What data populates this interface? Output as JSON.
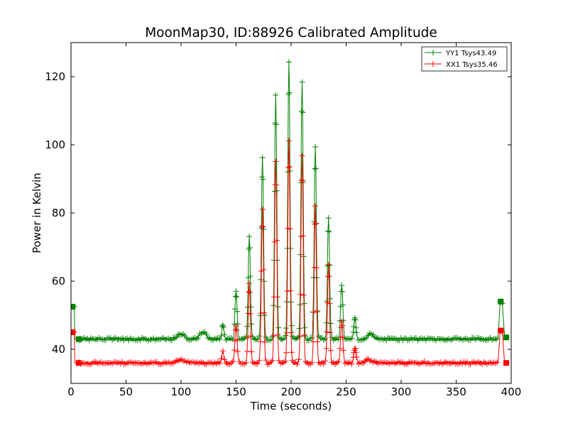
{
  "chart_data": {
    "type": "line",
    "title": "MoonMap30, ID:88926 Calibrated Amplitude",
    "xlabel": "Time (seconds)",
    "ylabel": "Power in Kelvin",
    "xlim": [
      0,
      400
    ],
    "ylim": [
      30,
      130
    ],
    "xticks": [
      0,
      50,
      100,
      150,
      200,
      250,
      300,
      350,
      400
    ],
    "yticks": [
      40,
      60,
      80,
      100,
      120
    ],
    "grid": false,
    "legend_position": "top-right",
    "series": [
      {
        "name": "YY1 Tsys43.49",
        "color": "#008000",
        "marker": "+",
        "baseline": 43,
        "calibration_start": {
          "x": [
            0,
            3,
            3.5,
            6
          ],
          "y": [
            52.5,
            52.5,
            43,
            43
          ]
        },
        "calibration_end": {
          "x": [
            388,
            390,
            392,
            394,
            396
          ],
          "y": [
            43,
            54,
            53.5,
            43.5,
            43.5
          ]
        },
        "bumps": [
          {
            "x": 100,
            "y": 44.5
          },
          {
            "x": 120,
            "y": 45
          },
          {
            "x": 138,
            "y": 47
          },
          {
            "x": 150,
            "y": 57
          },
          {
            "x": 162,
            "y": 73
          },
          {
            "x": 174,
            "y": 96.5
          },
          {
            "x": 186,
            "y": 114.5
          },
          {
            "x": 198,
            "y": 124.5
          },
          {
            "x": 210,
            "y": 118.5
          },
          {
            "x": 222,
            "y": 99.5
          },
          {
            "x": 234,
            "y": 78.5
          },
          {
            "x": 246,
            "y": 59
          },
          {
            "x": 258,
            "y": 49
          },
          {
            "x": 272,
            "y": 44.5
          }
        ]
      },
      {
        "name": "XX1 Tsys35.46",
        "color": "#ff0000",
        "marker": "+",
        "baseline": 36,
        "calibration_start": {
          "x": [
            0,
            3,
            3.5,
            6
          ],
          "y": [
            45,
            45,
            36,
            36
          ]
        },
        "calibration_end": {
          "x": [
            388,
            390,
            392,
            394,
            396
          ],
          "y": [
            36,
            45.5,
            45,
            36,
            36
          ]
        },
        "bumps": [
          {
            "x": 100,
            "y": 37
          },
          {
            "x": 138,
            "y": 39.5
          },
          {
            "x": 150,
            "y": 47
          },
          {
            "x": 162,
            "y": 59.5
          },
          {
            "x": 174,
            "y": 81
          },
          {
            "x": 186,
            "y": 95
          },
          {
            "x": 198,
            "y": 101
          },
          {
            "x": 210,
            "y": 97
          },
          {
            "x": 222,
            "y": 82
          },
          {
            "x": 234,
            "y": 64.5
          },
          {
            "x": 246,
            "y": 48
          },
          {
            "x": 258,
            "y": 40.5
          },
          {
            "x": 270,
            "y": 37
          }
        ]
      }
    ]
  }
}
